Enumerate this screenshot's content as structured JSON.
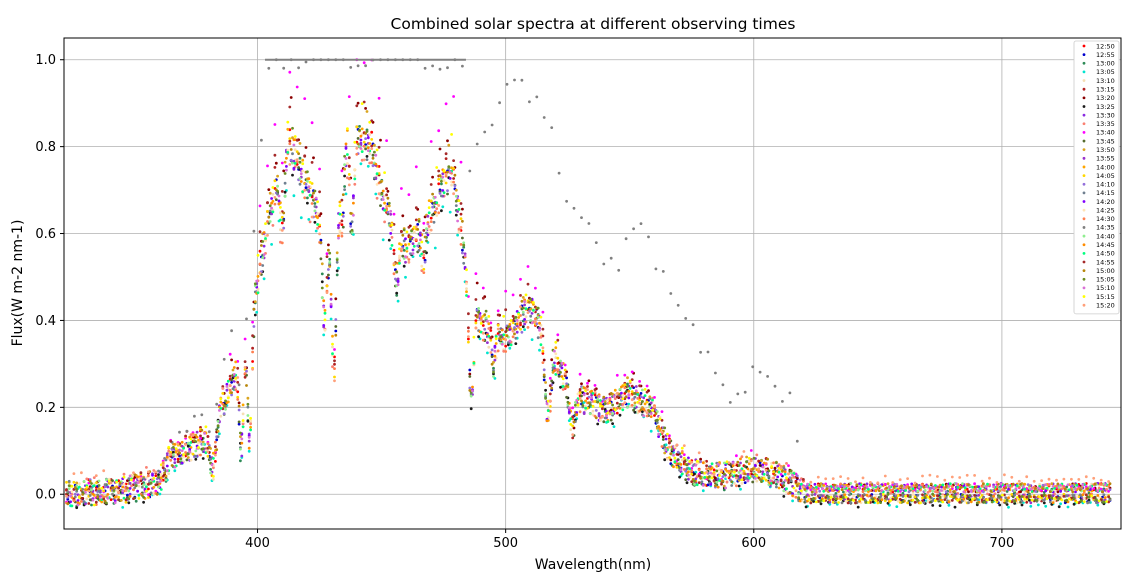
{
  "chart_data": {
    "type": "scatter",
    "title": "Combined solar spectra at different observing times",
    "xlabel": "Wavelength(nm)",
    "ylabel": "Flux(W m-2 nm-1)",
    "xlim": [
      322,
      748
    ],
    "ylim": [
      -0.08,
      1.05
    ],
    "xticks": [
      400,
      500,
      600,
      700
    ],
    "xtick_labels": [
      "400",
      "500",
      "600",
      "700"
    ],
    "yticks": [
      0.0,
      0.2,
      0.4,
      0.6,
      0.8,
      1.0
    ],
    "ytick_labels": [
      "0.0",
      "0.2",
      "0.4",
      "0.6",
      "0.8",
      "1.0"
    ],
    "grid": true,
    "legend_position": "top-right",
    "x_range": [
      323,
      744
    ],
    "series": [
      {
        "name": "12:50",
        "color": "#ff0000",
        "scale": 0.88,
        "offset": 0.0
      },
      {
        "name": "12:55",
        "color": "#0000cd",
        "scale": 0.86,
        "offset": 0.0
      },
      {
        "name": "13:00",
        "color": "#2e8b57",
        "scale": 0.87,
        "offset": -0.005
      },
      {
        "name": "13:05",
        "color": "#00e5d0",
        "scale": 0.78,
        "offset": -0.01
      },
      {
        "name": "13:10",
        "color": "#f5deb3",
        "scale": 0.85,
        "offset": 0.0
      },
      {
        "name": "13:15",
        "color": "#b22222",
        "scale": 0.9,
        "offset": 0.0
      },
      {
        "name": "13:20",
        "color": "#8b0000",
        "scale": 0.96,
        "offset": 0.0
      },
      {
        "name": "13:25",
        "color": "#1a1a1a",
        "scale": 0.84,
        "offset": -0.01
      },
      {
        "name": "13:30",
        "color": "#8a2be2",
        "scale": 0.86,
        "offset": 0.0
      },
      {
        "name": "13:35",
        "color": "#fa8072",
        "scale": 0.8,
        "offset": 0.015
      },
      {
        "name": "13:40",
        "color": "#ff00ff",
        "scale": 1.06,
        "offset": 0.0
      },
      {
        "name": "13:45",
        "color": "#556b2f",
        "scale": 0.84,
        "offset": 0.0
      },
      {
        "name": "13:50",
        "color": "#daa520",
        "scale": 0.9,
        "offset": 0.0
      },
      {
        "name": "13:55",
        "color": "#9932cc",
        "scale": 0.85,
        "offset": 0.0
      },
      {
        "name": "14:00",
        "color": "#ffa500",
        "scale": 0.88,
        "offset": 0.0
      },
      {
        "name": "14:05",
        "color": "#ffd700",
        "scale": 0.87,
        "offset": 0.0
      },
      {
        "name": "14:10",
        "color": "#9370db",
        "scale": 0.85,
        "offset": 0.0
      },
      {
        "name": "14:15",
        "color": "#708090",
        "scale": 0.84,
        "offset": 0.0
      },
      {
        "name": "14:20",
        "color": "#8000ff",
        "scale": 0.86,
        "offset": 0.0
      },
      {
        "name": "14:25",
        "color": "#ffe4b5",
        "scale": 0.85,
        "offset": 0.0
      },
      {
        "name": "14:30",
        "color": "#ff7f50",
        "scale": 0.84,
        "offset": 0.0
      },
      {
        "name": "14:35",
        "color": "#808080",
        "scale": 1.5,
        "offset": 0.0,
        "extended": true
      },
      {
        "name": "14:40",
        "color": "#90ee90",
        "scale": 0.86,
        "offset": 0.0
      },
      {
        "name": "14:45",
        "color": "#ff8c00",
        "scale": 0.87,
        "offset": 0.0
      },
      {
        "name": "14:50",
        "color": "#00ff7f",
        "scale": 0.85,
        "offset": 0.0
      },
      {
        "name": "14:55",
        "color": "#a52a2a",
        "scale": 0.95,
        "offset": 0.0
      },
      {
        "name": "15:00",
        "color": "#b8860b",
        "scale": 0.88,
        "offset": 0.0
      },
      {
        "name": "15:05",
        "color": "#6b8e23",
        "scale": 0.89,
        "offset": 0.0
      },
      {
        "name": "15:10",
        "color": "#da70d6",
        "scale": 0.86,
        "offset": 0.0
      },
      {
        "name": "15:15",
        "color": "#ffff00",
        "scale": 0.92,
        "offset": 0.0
      },
      {
        "name": "15:20",
        "color": "#ffa07a",
        "scale": 0.82,
        "offset": 0.02
      }
    ]
  }
}
